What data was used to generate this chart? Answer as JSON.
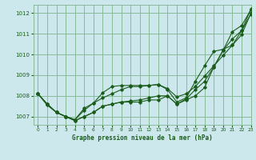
{
  "title": "Graphe pression niveau de la mer (hPa)",
  "background_color": "#cce8ec",
  "grid_color": "#88bb99",
  "line_color": "#1a5c1a",
  "xlim": [
    -0.5,
    23
  ],
  "ylim": [
    1006.6,
    1012.4
  ],
  "yticks": [
    1007,
    1008,
    1009,
    1010,
    1011,
    1012
  ],
  "xticks": [
    0,
    1,
    2,
    3,
    4,
    5,
    6,
    7,
    8,
    9,
    10,
    11,
    12,
    13,
    14,
    15,
    16,
    17,
    18,
    19,
    20,
    21,
    22,
    23
  ],
  "series": [
    [
      1008.1,
      1007.6,
      1007.2,
      1007.0,
      1006.8,
      1007.0,
      1007.2,
      1007.5,
      1007.6,
      1007.7,
      1007.7,
      1007.7,
      1007.8,
      1007.8,
      1008.0,
      1007.6,
      1007.8,
      1008.0,
      1008.4,
      1009.4,
      1010.2,
      1011.1,
      1011.4,
      1012.15
    ],
    [
      1008.1,
      1007.6,
      1007.2,
      1007.0,
      1006.8,
      1007.0,
      1007.2,
      1007.5,
      1007.6,
      1007.7,
      1007.75,
      1007.8,
      1007.9,
      1008.0,
      1008.0,
      1007.6,
      1007.85,
      1008.3,
      1008.7,
      1009.4,
      1010.2,
      1010.75,
      1011.15,
      1012.2
    ],
    [
      1008.1,
      1007.6,
      1007.2,
      1007.0,
      1006.85,
      1007.4,
      1007.65,
      1007.9,
      1008.1,
      1008.3,
      1008.45,
      1008.45,
      1008.5,
      1008.55,
      1008.35,
      1007.95,
      1008.1,
      1008.45,
      1008.95,
      1009.45,
      1009.95,
      1010.45,
      1010.95,
      1012.0
    ],
    [
      1008.1,
      1007.55,
      1007.2,
      1007.0,
      1006.85,
      1007.3,
      1007.65,
      1008.15,
      1008.45,
      1008.5,
      1008.5,
      1008.5,
      1008.5,
      1008.55,
      1008.3,
      1007.7,
      1007.9,
      1008.7,
      1009.45,
      1010.15,
      1010.25,
      1010.45,
      1011.15,
      1011.95
    ]
  ]
}
